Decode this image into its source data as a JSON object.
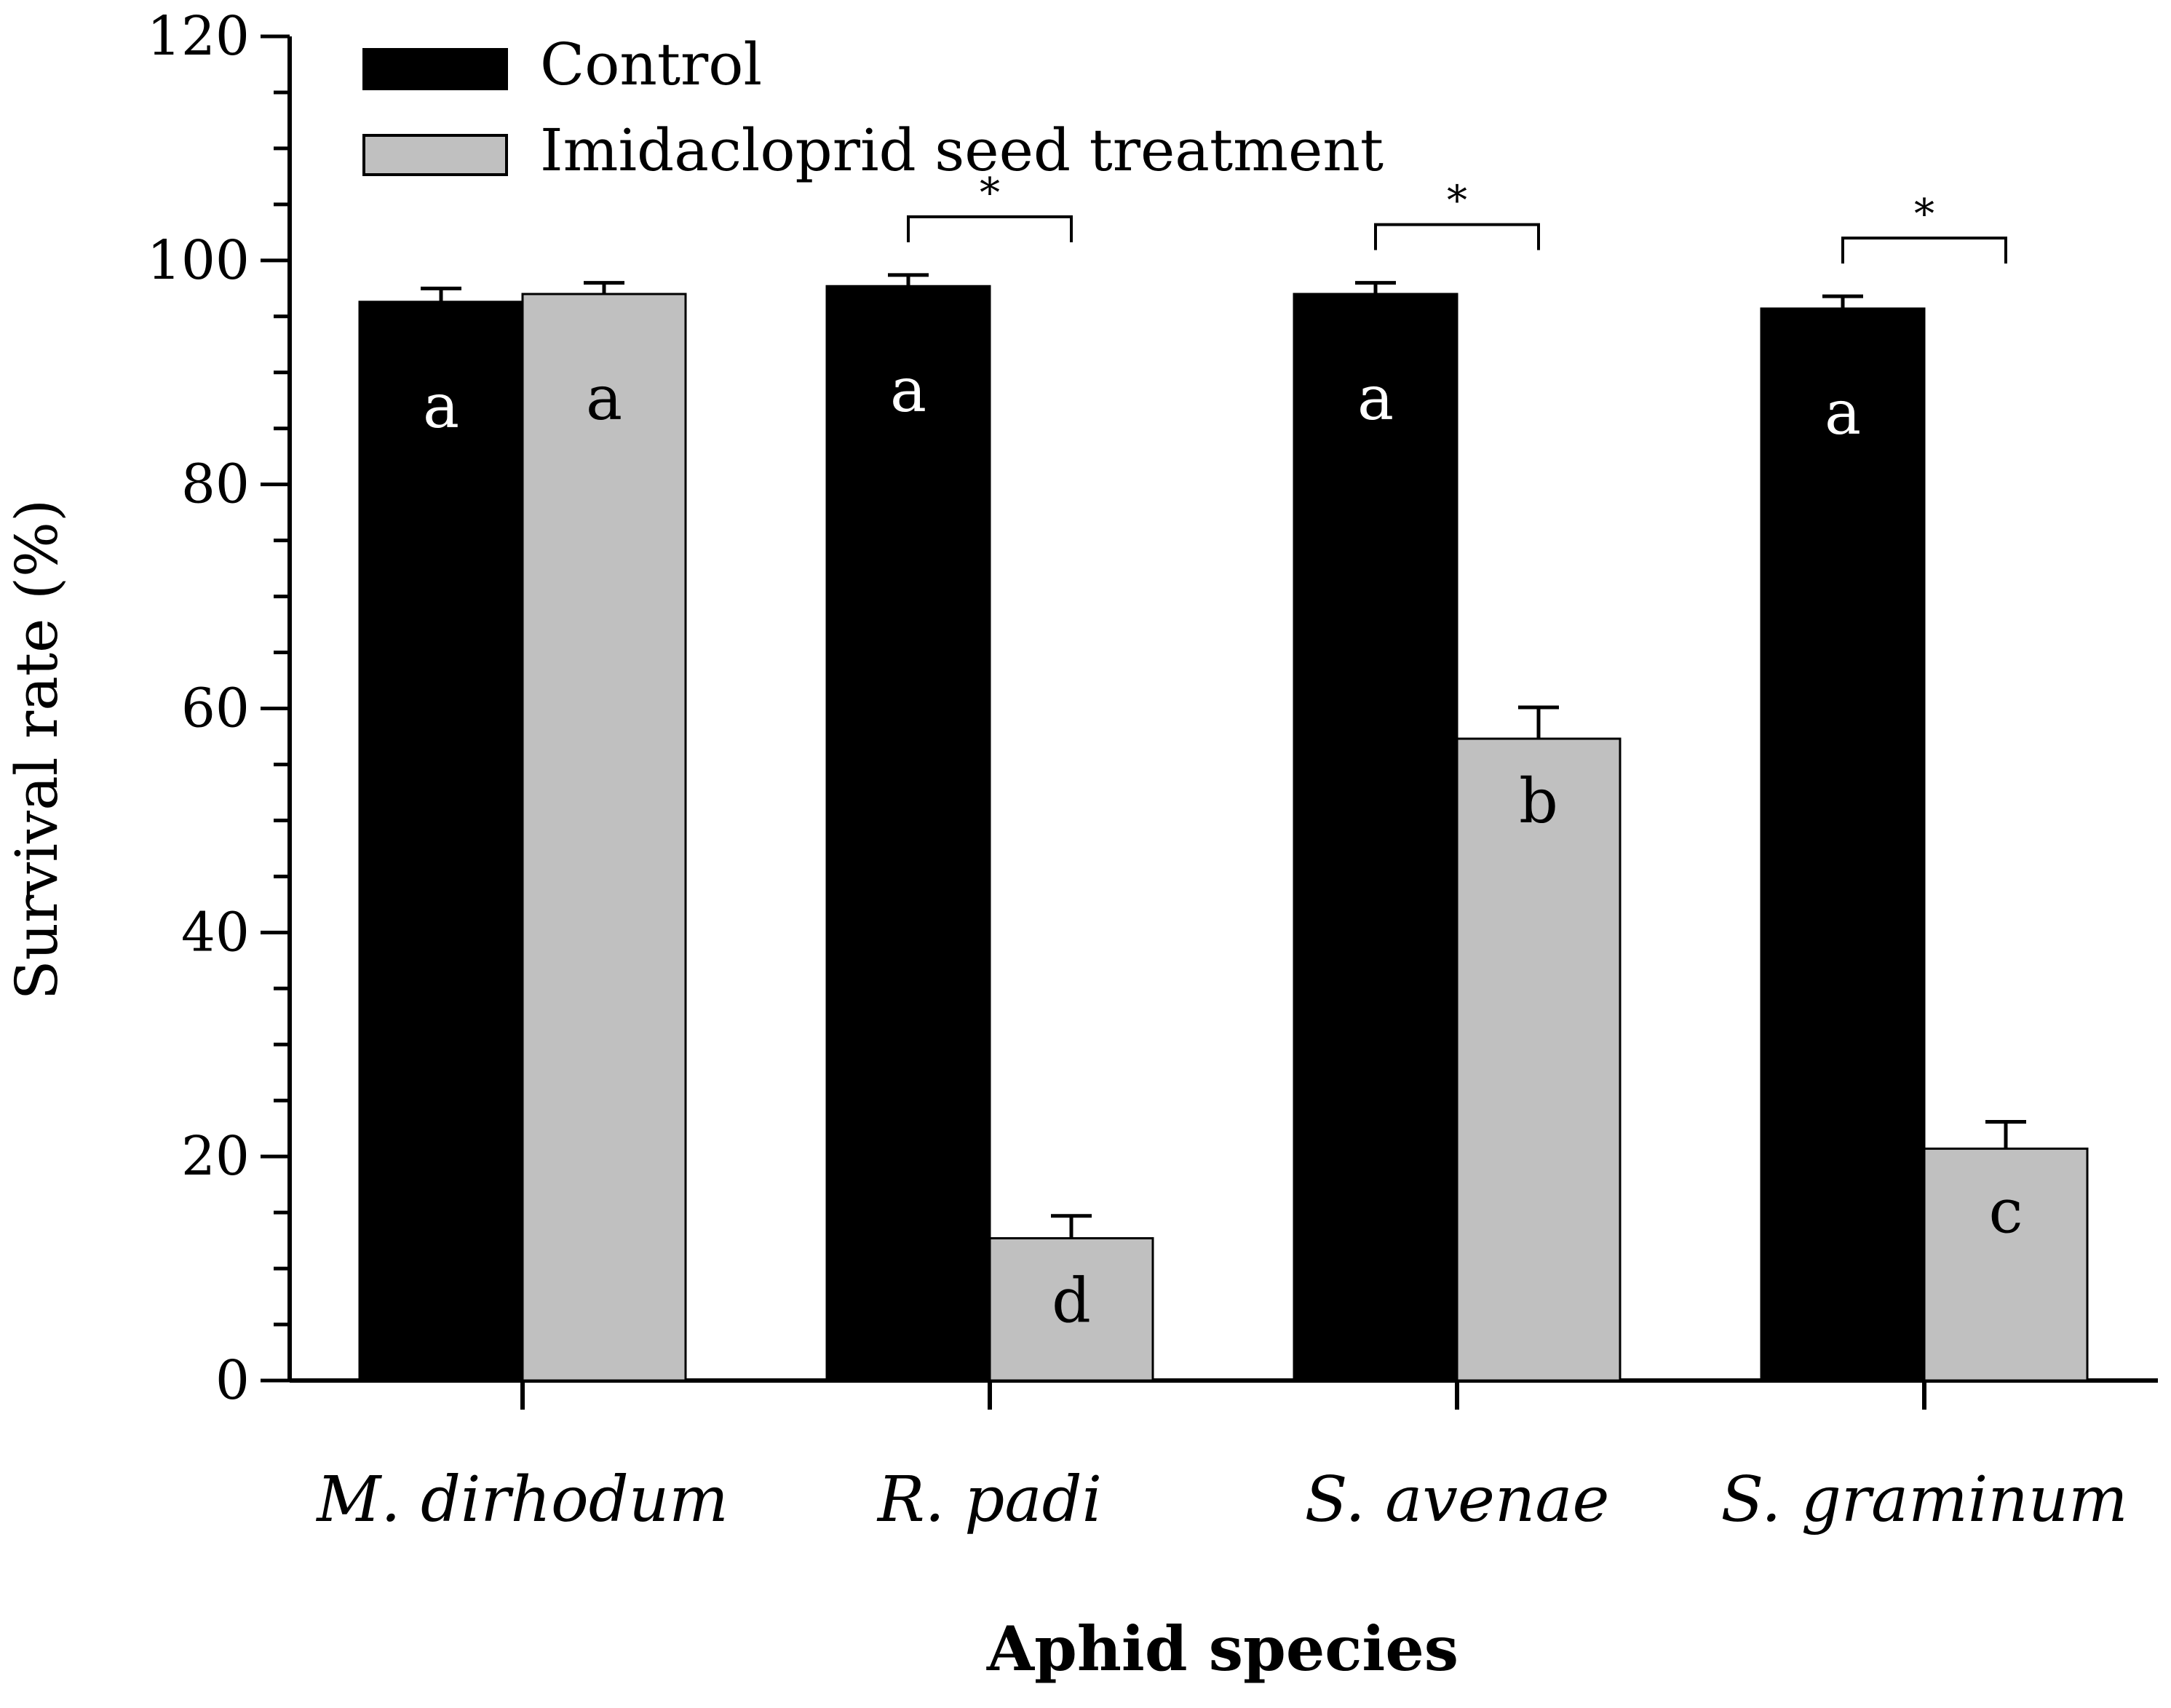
{
  "chart_data": {
    "type": "bar",
    "categories": [
      "M. dirhodum",
      "R. padi",
      "S. avenae",
      "S. graminum"
    ],
    "series": [
      {
        "name": "Control",
        "color": "#000000",
        "values": [
          96.3,
          97.7,
          97.0,
          95.7
        ],
        "errors": [
          1.2,
          1.0,
          1.0,
          1.1
        ],
        "letters": [
          "a",
          "a",
          "a",
          "a"
        ]
      },
      {
        "name": "Imidacloprid seed treatment",
        "color": "#c0c0c0",
        "values": [
          97.0,
          12.7,
          57.3,
          20.7
        ],
        "errors": [
          1.0,
          2.0,
          2.8,
          2.4
        ],
        "letters": [
          "a",
          "d",
          "b",
          "c"
        ]
      }
    ],
    "significance": [
      "",
      "*",
      "*",
      "*"
    ],
    "xlabel": "Aphid species",
    "ylabel": "Survival rate (%)",
    "ylim": [
      0,
      120
    ],
    "yticks": [
      0,
      20,
      40,
      60,
      80,
      100,
      120
    ],
    "legend_position": "top-left",
    "grid": false
  }
}
